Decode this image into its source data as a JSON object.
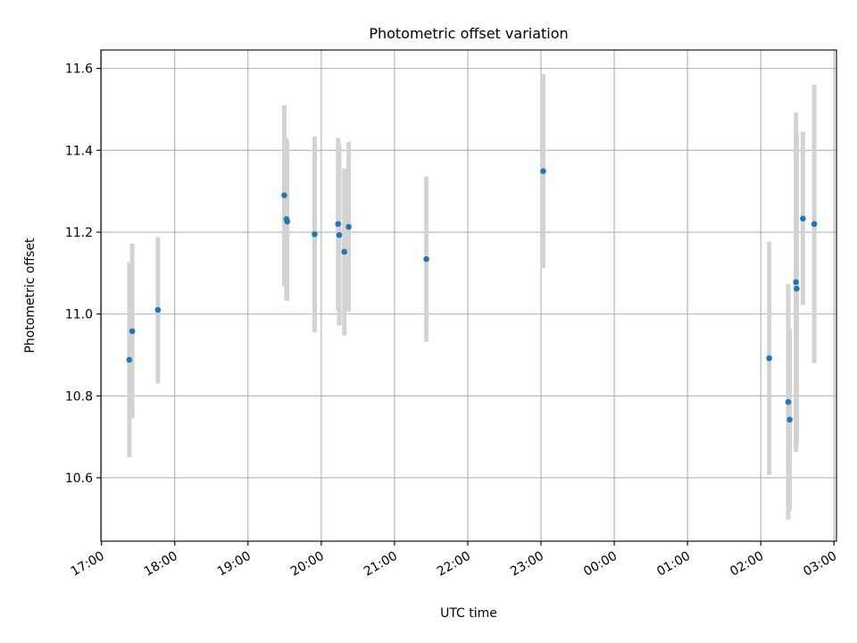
{
  "chart_data": {
    "type": "scatter",
    "title": "Photometric offset variation",
    "xlabel": "UTC time",
    "ylabel": "Photometric offset",
    "grid": true,
    "x_unit": "minutes after 17:00 UTC",
    "xlim": [
      -0.5,
      602
    ],
    "ylim": [
      10.445,
      11.645
    ],
    "xticks": [
      {
        "x": 0,
        "label": "17:00"
      },
      {
        "x": 60,
        "label": "18:00"
      },
      {
        "x": 120,
        "label": "19:00"
      },
      {
        "x": 180,
        "label": "20:00"
      },
      {
        "x": 240,
        "label": "21:00"
      },
      {
        "x": 300,
        "label": "22:00"
      },
      {
        "x": 360,
        "label": "23:00"
      },
      {
        "x": 420,
        "label": "00:00"
      },
      {
        "x": 480,
        "label": "01:00"
      },
      {
        "x": 540,
        "label": "02:00"
      },
      {
        "x": 600,
        "label": "03:00"
      }
    ],
    "yticks": [
      {
        "y": 10.6,
        "label": "10.6"
      },
      {
        "y": 10.8,
        "label": "10.8"
      },
      {
        "y": 11.0,
        "label": "11.0"
      },
      {
        "y": 11.2,
        "label": "11.2"
      },
      {
        "y": 11.4,
        "label": "11.4"
      },
      {
        "y": 11.6,
        "label": "11.6"
      }
    ],
    "colors": {
      "marker": "#1f77b4",
      "errorbar": "#d3d3d3",
      "grid": "#b0b0b0"
    },
    "points": [
      {
        "x": 22.8,
        "y": 10.888,
        "lo": 10.65,
        "hi": 11.126
      },
      {
        "x": 25.2,
        "y": 10.958,
        "lo": 10.745,
        "hi": 11.172
      },
      {
        "x": 46.2,
        "y": 11.01,
        "lo": 10.83,
        "hi": 11.188
      },
      {
        "x": 149.7,
        "y": 11.29,
        "lo": 11.068,
        "hi": 11.51
      },
      {
        "x": 151.5,
        "y": 11.232,
        "lo": 11.034,
        "hi": 11.43
      },
      {
        "x": 152.1,
        "y": 11.226,
        "lo": 11.032,
        "hi": 11.42
      },
      {
        "x": 174.6,
        "y": 11.195,
        "lo": 10.955,
        "hi": 11.434
      },
      {
        "x": 193.8,
        "y": 11.22,
        "lo": 11.01,
        "hi": 11.43
      },
      {
        "x": 194.7,
        "y": 11.193,
        "lo": 10.972,
        "hi": 11.414
      },
      {
        "x": 198.9,
        "y": 11.152,
        "lo": 10.948,
        "hi": 11.356
      },
      {
        "x": 202.5,
        "y": 11.213,
        "lo": 11.006,
        "hi": 11.42
      },
      {
        "x": 266.1,
        "y": 11.134,
        "lo": 10.932,
        "hi": 11.336
      },
      {
        "x": 361.8,
        "y": 11.349,
        "lo": 11.112,
        "hi": 11.586
      },
      {
        "x": 546.9,
        "y": 10.892,
        "lo": 10.607,
        "hi": 11.177
      },
      {
        "x": 562.5,
        "y": 10.785,
        "lo": 10.497,
        "hi": 11.073
      },
      {
        "x": 563.7,
        "y": 10.742,
        "lo": 10.52,
        "hi": 10.964
      },
      {
        "x": 568.8,
        "y": 11.078,
        "lo": 10.663,
        "hi": 11.492
      },
      {
        "x": 569.4,
        "y": 11.062,
        "lo": 10.68,
        "hi": 11.443
      },
      {
        "x": 574.5,
        "y": 11.233,
        "lo": 11.022,
        "hi": 11.445
      },
      {
        "x": 583.8,
        "y": 11.22,
        "lo": 10.88,
        "hi": 11.56
      }
    ]
  }
}
